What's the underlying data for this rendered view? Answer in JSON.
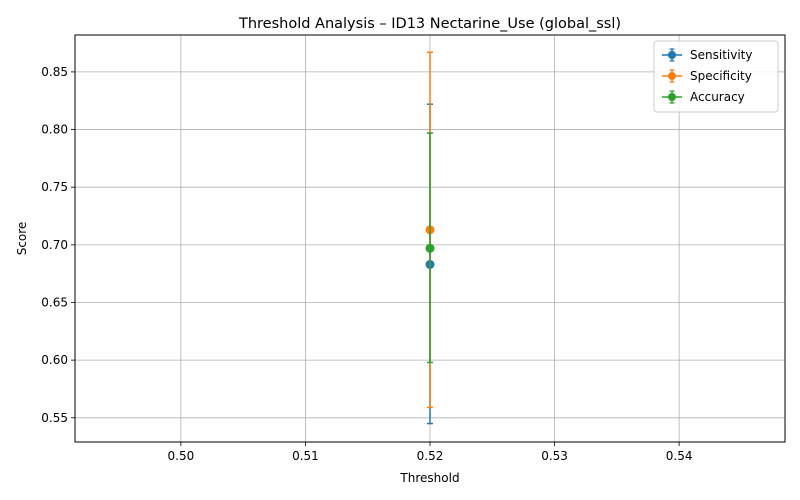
{
  "chart_data": {
    "type": "scatter",
    "title": "Threshold Analysis – ID13 Nectarine_Use (global_ssl)",
    "xlabel": "Threshold",
    "ylabel": "Score",
    "xlim": [
      0.4915,
      0.5485
    ],
    "ylim": [
      0.529,
      0.882
    ],
    "x_ticks": [
      0.5,
      0.51,
      0.52,
      0.53,
      0.54
    ],
    "x_tick_labels": [
      "0.50",
      "0.51",
      "0.52",
      "0.53",
      "0.54"
    ],
    "y_ticks": [
      0.55,
      0.6,
      0.65,
      0.7,
      0.75,
      0.8,
      0.85
    ],
    "y_tick_labels": [
      "0.55",
      "0.60",
      "0.65",
      "0.70",
      "0.75",
      "0.80",
      "0.85"
    ],
    "grid": true,
    "legend_position": "top-right",
    "error_bars": true,
    "series": [
      {
        "name": "Sensitivity",
        "color": "#1f77b4",
        "x": [
          0.52
        ],
        "y": [
          0.683
        ],
        "yerr_low": [
          0.545
        ],
        "yerr_high": [
          0.822
        ]
      },
      {
        "name": "Specificity",
        "color": "#ff7f0e",
        "x": [
          0.52
        ],
        "y": [
          0.713
        ],
        "yerr_low": [
          0.559
        ],
        "yerr_high": [
          0.867
        ]
      },
      {
        "name": "Accuracy",
        "color": "#2ca02c",
        "x": [
          0.52
        ],
        "y": [
          0.697
        ],
        "yerr_low": [
          0.598
        ],
        "yerr_high": [
          0.797
        ]
      }
    ]
  }
}
